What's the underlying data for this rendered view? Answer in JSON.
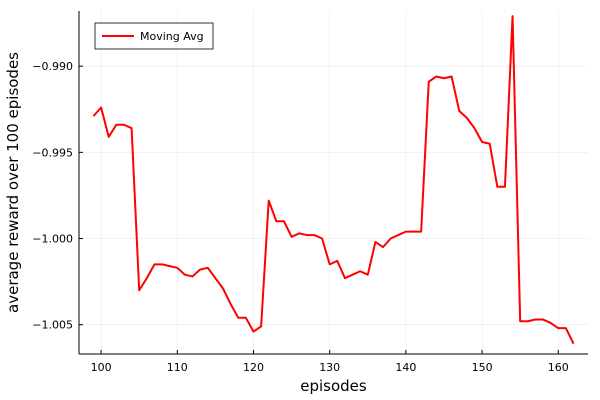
{
  "chart_data": {
    "type": "line",
    "title": "",
    "xlabel": "episodes",
    "ylabel": "average reward over 100 episodes",
    "xlim": [
      97.1,
      163.9
    ],
    "ylim": [
      -1.0067,
      -0.9868
    ],
    "xticks": [
      100,
      110,
      120,
      130,
      140,
      150,
      160
    ],
    "xtick_labels": [
      "100",
      "110",
      "120",
      "130",
      "140",
      "150",
      "160"
    ],
    "yticks": [
      -0.99,
      -0.995,
      -1.0,
      -1.005
    ],
    "ytick_labels": [
      "−0.990",
      "−0.995",
      "−1.000",
      "−1.005"
    ],
    "grid": true,
    "legend_position": "top-left",
    "series": [
      {
        "name": "Moving Avg",
        "color": "#ff0000",
        "x": [
          99,
          100,
          101,
          102,
          103,
          104,
          105,
          106,
          107,
          108,
          109,
          110,
          111,
          112,
          113,
          114,
          115,
          116,
          117,
          118,
          119,
          120,
          121,
          122,
          123,
          124,
          125,
          126,
          127,
          128,
          129,
          130,
          131,
          132,
          133,
          134,
          135,
          136,
          137,
          138,
          139,
          140,
          141,
          142,
          143,
          144,
          145,
          146,
          147,
          148,
          149,
          150,
          151,
          152,
          153,
          154,
          155,
          156,
          157,
          158,
          159,
          160,
          161,
          162
        ],
        "y": [
          -0.9929,
          -0.9924,
          -0.9941,
          -0.9934,
          -0.9934,
          -0.9936,
          -1.003,
          -1.0023,
          -1.0015,
          -1.0015,
          -1.0016,
          -1.0017,
          -1.0021,
          -1.0022,
          -1.0018,
          -1.0017,
          -1.0023,
          -1.0029,
          -1.0038,
          -1.0046,
          -1.0046,
          -1.0054,
          -1.0051,
          -0.9978,
          -0.999,
          -0.999,
          -0.9999,
          -0.9997,
          -0.9998,
          -0.9998,
          -1.0,
          -1.0015,
          -1.0013,
          -1.0023,
          -1.0021,
          -1.0019,
          -1.0021,
          -1.0002,
          -1.0005,
          -1.0,
          -0.9998,
          -0.9996,
          -0.9996,
          -0.9996,
          -0.9909,
          -0.9906,
          -0.9907,
          -0.9906,
          -0.9926,
          -0.993,
          -0.9936,
          -0.9944,
          -0.9945,
          -0.997,
          -0.997,
          -0.9871,
          -1.0048,
          -1.0048,
          -1.0047,
          -1.0047,
          -1.0049,
          -1.0052,
          -1.0052,
          -1.0061
        ]
      }
    ]
  }
}
